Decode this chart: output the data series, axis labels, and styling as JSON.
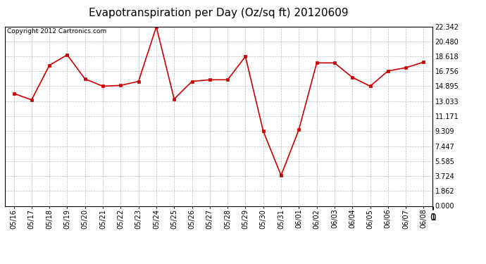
{
  "title": "Evapotranspiration per Day (Oz/sq ft) 20120609",
  "copyright_text": "Copyright 2012 Cartronics.com",
  "dates": [
    "05/16",
    "05/17",
    "05/18",
    "05/19",
    "05/20",
    "05/21",
    "05/22",
    "05/23",
    "05/24",
    "05/25",
    "05/26",
    "05/27",
    "05/28",
    "05/29",
    "05/30",
    "05/31",
    "06/01",
    "06/02",
    "06/03",
    "06/04",
    "06/05",
    "06/06",
    "06/07",
    "06/08"
  ],
  "values": [
    14.0,
    13.2,
    17.5,
    18.8,
    15.8,
    14.9,
    15.0,
    15.5,
    22.3,
    13.3,
    15.5,
    15.7,
    15.7,
    18.6,
    9.3,
    3.8,
    9.5,
    17.8,
    17.8,
    16.0,
    14.9,
    16.8,
    17.2,
    17.9
  ],
  "ylim": [
    0.0,
    22.342
  ],
  "yticks": [
    0.0,
    1.862,
    3.724,
    5.585,
    7.447,
    9.309,
    11.171,
    13.033,
    14.895,
    16.756,
    18.618,
    20.48,
    22.342
  ],
  "line_color": "#cc0000",
  "marker_color": "#cc0000",
  "bg_color": "#ffffff",
  "plot_bg_color": "#ffffff",
  "grid_color": "#bbbbbb",
  "title_fontsize": 11,
  "tick_fontsize": 7,
  "copyright_fontsize": 6.5
}
